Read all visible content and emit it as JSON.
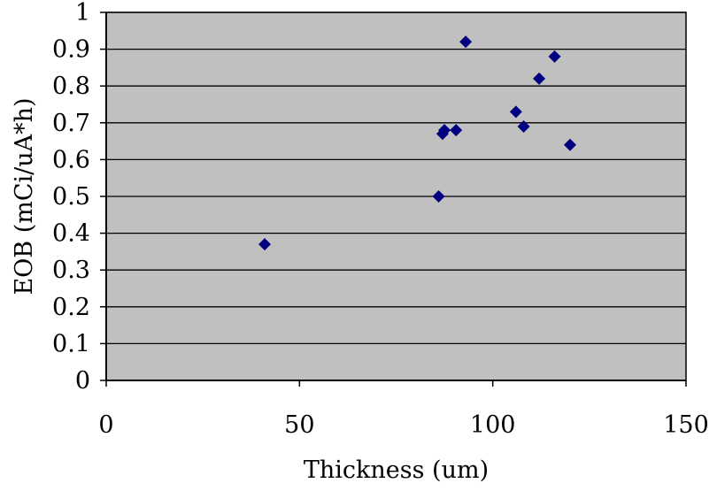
{
  "chart_data": {
    "type": "scatter",
    "xlabel": "Thickness (um)",
    "ylabel": "EOB (mCi/uA*h)",
    "xlim": [
      0,
      150
    ],
    "ylim": [
      0,
      1
    ],
    "xticks": [
      0,
      50,
      100,
      150
    ],
    "yticks": [
      0,
      0.1,
      0.2,
      0.3,
      0.4,
      0.5,
      0.6,
      0.7,
      0.8,
      0.9,
      1
    ],
    "grid": "horizontal",
    "legend": "none",
    "series": [
      {
        "points": [
          {
            "x": 41,
            "y": 0.37
          },
          {
            "x": 86,
            "y": 0.5
          },
          {
            "x": 87,
            "y": 0.67
          },
          {
            "x": 87.5,
            "y": 0.68
          },
          {
            "x": 90.5,
            "y": 0.68
          },
          {
            "x": 93,
            "y": 0.92
          },
          {
            "x": 106,
            "y": 0.73
          },
          {
            "x": 108,
            "y": 0.69
          },
          {
            "x": 112,
            "y": 0.82
          },
          {
            "x": 116,
            "y": 0.88
          },
          {
            "x": 120,
            "y": 0.64
          }
        ]
      }
    ]
  },
  "colors": {
    "plot_background": "#c0c0c0",
    "gridline": "#000000",
    "marker": "#000080",
    "text": "#000000"
  },
  "marker_shape": "diamond"
}
